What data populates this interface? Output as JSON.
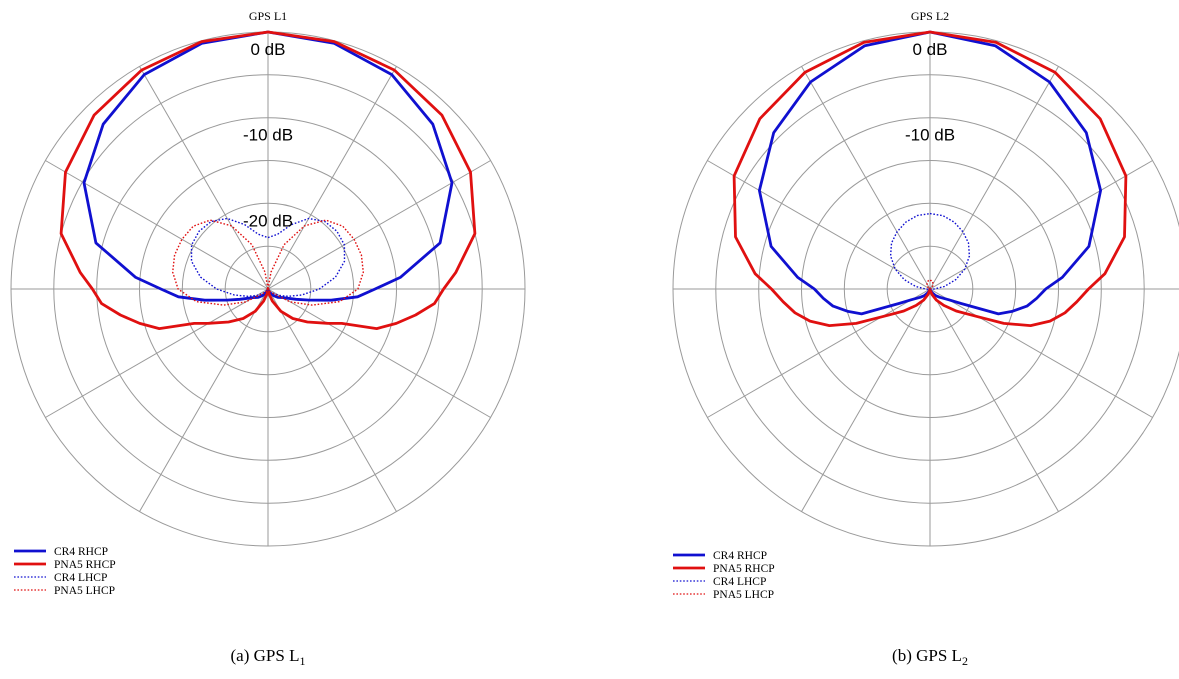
{
  "chart_data": [
    {
      "type": "polar",
      "title": "GPS L1",
      "caption": {
        "prefix": "(a) GPS L",
        "subscript": "1"
      },
      "radial_unit": "dB",
      "radial_range": [
        -30,
        0
      ],
      "radial_labels": [
        "0 dB",
        "-10 dB",
        "-20 dB"
      ],
      "angular_spokes_deg": 30,
      "legend": {
        "placement": "bottom-left"
      },
      "series": [
        {
          "name": "CR4 RHCP",
          "color": "#1010d0",
          "style": "solid",
          "angle_deg": [
            0,
            15,
            30,
            45,
            60,
            75,
            85,
            90,
            95,
            100,
            105,
            110,
            120,
            130,
            140,
            150,
            160,
            170,
            180
          ],
          "gain_db": [
            0,
            -0.3,
            -1.1,
            -2.8,
            -5.2,
            -9.2,
            -14.5,
            -17.5,
            -19.5,
            -22.5,
            -25,
            -26.5,
            -28,
            -28.5,
            -29,
            -29.5,
            -29.8,
            -29.9,
            -30
          ]
        },
        {
          "name": "PNA5 RHCP",
          "color": "#e01010",
          "style": "solid",
          "angle_deg": [
            0,
            15,
            30,
            45,
            60,
            75,
            85,
            90,
            95,
            100,
            105,
            110,
            115,
            120,
            130,
            140,
            150,
            160,
            170,
            180
          ],
          "gain_db": [
            0,
            -0.1,
            -0.5,
            -1.3,
            -2.7,
            -5,
            -8,
            -9.5,
            -10.5,
            -12.5,
            -14.5,
            -16.5,
            -20.5,
            -22,
            -24,
            -25.5,
            -27,
            -28.5,
            -29.5,
            -30
          ]
        },
        {
          "name": "CR4 LHCP",
          "color": "#1010d0",
          "style": "dotted",
          "angle_deg": [
            0,
            10,
            20,
            30,
            40,
            50,
            60,
            70,
            80,
            90,
            100,
            110,
            120,
            140,
            160,
            180
          ],
          "gain_db": [
            -24,
            -23.5,
            -22,
            -20.5,
            -19.7,
            -19.5,
            -19.7,
            -20.5,
            -22,
            -24,
            -26,
            -27.5,
            -28.5,
            -29.5,
            -29.8,
            -30
          ]
        },
        {
          "name": "PNA5 LHCP",
          "color": "#e01010",
          "style": "dotted",
          "angle_deg": [
            0,
            10,
            20,
            30,
            40,
            50,
            60,
            70,
            80,
            90,
            100,
            110,
            120,
            140,
            160,
            180
          ],
          "gain_db": [
            -30,
            -28,
            -24.5,
            -21.5,
            -19.5,
            -18.6,
            -18.4,
            -18.4,
            -18.7,
            -19.5,
            -21.5,
            -24.5,
            -27,
            -29.5,
            -29.8,
            -30
          ]
        }
      ]
    },
    {
      "type": "polar",
      "title": "GPS L2",
      "caption": {
        "prefix": "(b) GPS L",
        "subscript": "2"
      },
      "radial_unit": "dB",
      "radial_range": [
        -30,
        0
      ],
      "radial_labels": [
        "0 dB",
        "-10 dB"
      ],
      "angular_spokes_deg": 30,
      "legend": {
        "placement": "bottom-left"
      },
      "series": [
        {
          "name": "CR4 RHCP",
          "color": "#1010d0",
          "style": "solid",
          "angle_deg": [
            0,
            15,
            30,
            45,
            60,
            75,
            85,
            90,
            95,
            100,
            105,
            110,
            115,
            120,
            130,
            140,
            150,
            160,
            170,
            180
          ],
          "gain_db": [
            0,
            -0.6,
            -2.1,
            -4.2,
            -7,
            -10.8,
            -14.5,
            -16.5,
            -17.5,
            -18.5,
            -20,
            -21.5,
            -26,
            -27.5,
            -28.5,
            -29,
            -29.5,
            -29.8,
            -29.9,
            -30
          ]
        },
        {
          "name": "PNA5 RHCP",
          "color": "#e01010",
          "style": "solid",
          "angle_deg": [
            0,
            15,
            30,
            45,
            60,
            75,
            85,
            90,
            95,
            100,
            105,
            110,
            115,
            120,
            130,
            140,
            150,
            160,
            170,
            180
          ],
          "gain_db": [
            0,
            -0.2,
            -0.8,
            -1.9,
            -3.6,
            -6.5,
            -9.5,
            -11.5,
            -12.8,
            -14,
            -15.5,
            -17.5,
            -20.5,
            -23.5,
            -26,
            -27.5,
            -28.5,
            -29.3,
            -29.8,
            -30
          ]
        },
        {
          "name": "CR4 LHCP",
          "color": "#1010d0",
          "style": "dotted",
          "angle_deg": [
            0,
            10,
            20,
            30,
            40,
            50,
            60,
            70,
            80,
            90,
            100,
            110,
            120,
            140,
            160,
            180
          ],
          "gain_db": [
            -21.2,
            -21.3,
            -21.7,
            -22.3,
            -23,
            -24,
            -25.3,
            -26.8,
            -28.3,
            -29.5,
            -29.8,
            -29.9,
            -30,
            -30,
            -30,
            -30
          ]
        },
        {
          "name": "PNA5 LHCP",
          "color": "#e01010",
          "style": "dotted",
          "angle_deg": [
            0,
            10,
            20,
            30,
            40,
            50,
            60,
            70,
            80,
            90,
            100,
            140,
            180
          ],
          "gain_db": [
            -29,
            -29,
            -29.1,
            -29.3,
            -29.5,
            -29.7,
            -29.85,
            -29.95,
            -30,
            -30,
            -30,
            -30,
            -30
          ]
        }
      ]
    }
  ]
}
